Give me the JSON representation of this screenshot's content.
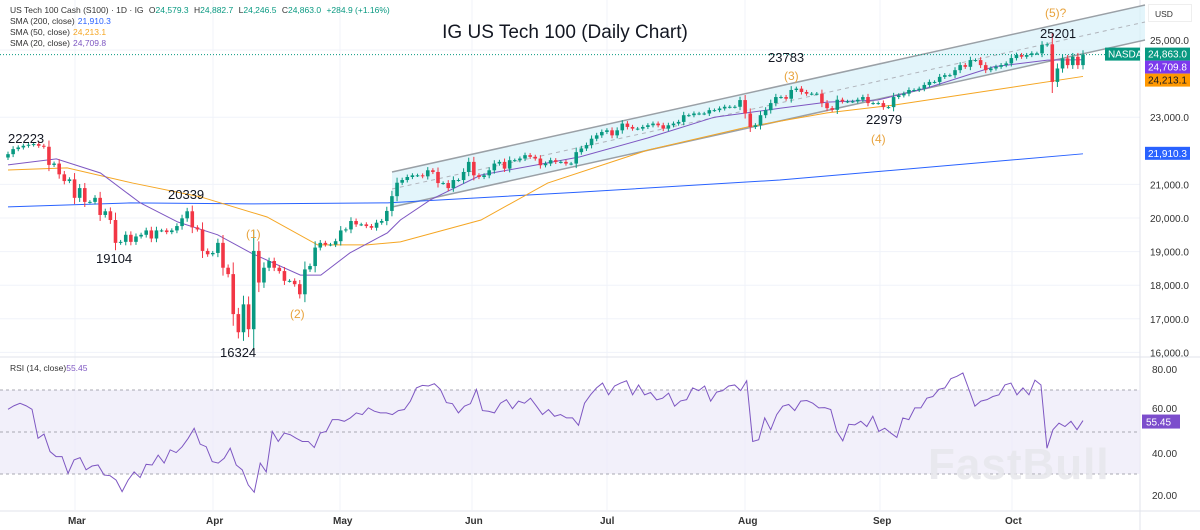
{
  "header": {
    "symbol": "US Tech 100 Cash (S100) · 1D · IG",
    "o_label": "O",
    "o": "24,579.3",
    "h_label": "H",
    "h": "24,882.7",
    "l_label": "L",
    "l": "24,246.5",
    "c_label": "C",
    "c": "24,863.0",
    "change": "+284.9 (+1.16%)",
    "sma200_label": "SMA (200, close)",
    "sma200": "21,910.3",
    "sma50_label": "SMA (50, close)",
    "sma50": "24,213.1",
    "sma20_label": "SMA (20, close)",
    "sma20": "24,709.8",
    "rsi_label": "RSI (14, close)",
    "rsi": "55.45",
    "currency": "USD",
    "watermark": "FastBull"
  },
  "colors": {
    "up": "#089981",
    "down": "#f23645",
    "sma200": "#2962ff",
    "sma50": "#f5a623",
    "sma20": "#7e57c2",
    "rsi": "#7e57c2",
    "channel": "#d9f2fa",
    "annotation_wave": "#e8a33d"
  },
  "chart_data": [
    {
      "type": "candlestick",
      "title": "IG US Tech 100 (Daily Chart)",
      "x_ticks": [
        "Mar",
        "Apr",
        "May",
        "Jun",
        "Jul",
        "Aug",
        "Sep",
        "Oct"
      ],
      "y_ticks": [
        "25,000.0",
        "23,000.0",
        "21,000.0",
        "20,000.0",
        "19,000.0",
        "18,000.0",
        "17,000.0",
        "16,000.0"
      ],
      "ylim": [
        15950,
        25450
      ],
      "closes": [
        21900,
        22050,
        22100,
        22150,
        22180,
        22200,
        22150,
        22120,
        21580,
        21620,
        21300,
        21100,
        21150,
        20600,
        20890,
        20480,
        20480,
        20600,
        20090,
        20200,
        19940,
        19260,
        19290,
        19500,
        19290,
        19450,
        19500,
        19630,
        19390,
        19630,
        19630,
        19580,
        19630,
        19760,
        19990,
        20200,
        19720,
        19660,
        19020,
        18920,
        18960,
        19260,
        18520,
        18330,
        17140,
        16600,
        17430,
        16690,
        19020,
        18080,
        18520,
        18720,
        18520,
        18420,
        18130,
        18130,
        18030,
        17730,
        18470,
        18570,
        19120,
        19260,
        19210,
        19210,
        19310,
        19630,
        19660,
        19910,
        19810,
        19810,
        19760,
        19710,
        19860,
        19910,
        20210,
        20650,
        21050,
        21130,
        21220,
        21270,
        21270,
        21240,
        21420,
        21370,
        21040,
        21040,
        20890,
        21130,
        21130,
        21370,
        21670,
        21270,
        21220,
        21270,
        21420,
        21620,
        21670,
        21470,
        21720,
        21720,
        21770,
        21870,
        21820,
        21770,
        21570,
        21620,
        21720,
        21670,
        21670,
        21620,
        21620,
        21960,
        22070,
        22170,
        22360,
        22460,
        22560,
        22610,
        22460,
        22610,
        22810,
        22710,
        22660,
        22660,
        22710,
        22760,
        22810,
        22760,
        22660,
        22760,
        22810,
        22860,
        23060,
        23060,
        23110,
        23110,
        23110,
        23210,
        23210,
        23260,
        23310,
        23310,
        23310,
        23510,
        23110,
        22710,
        22760,
        23060,
        23210,
        23420,
        23600,
        23600,
        23550,
        23810,
        23850,
        23750,
        23700,
        23700,
        23700,
        23420,
        23270,
        23220,
        23520,
        23470,
        23470,
        23470,
        23520,
        23600,
        23420,
        23420,
        23420,
        23300,
        23300,
        23600,
        23650,
        23700,
        23810,
        23810,
        23850,
        23960,
        24050,
        24050,
        24200,
        24250,
        24250,
        24400,
        24550,
        24500,
        24700,
        24700,
        24550,
        24400,
        24450,
        24500,
        24550,
        24600,
        24760,
        24850,
        24800,
        24850,
        24900,
        24900,
        25150,
        25170,
        24050,
        24450,
        24750,
        24550,
        24800,
        24550,
        24863
      ],
      "sma20": [
        [
          0,
          21580
        ],
        [
          0.045,
          21760
        ],
        [
          0.086,
          21340
        ],
        [
          0.123,
          20450
        ],
        [
          0.158,
          19880
        ],
        [
          0.195,
          19500
        ],
        [
          0.226,
          18960
        ],
        [
          0.272,
          18300
        ],
        [
          0.291,
          18300
        ],
        [
          0.318,
          18960
        ],
        [
          0.353,
          19560
        ],
        [
          0.365,
          19940
        ],
        [
          0.393,
          20540
        ],
        [
          0.44,
          21280
        ],
        [
          0.502,
          21640
        ],
        [
          0.532,
          21820
        ],
        [
          0.595,
          22380
        ],
        [
          0.657,
          23000
        ],
        [
          0.719,
          23270
        ],
        [
          0.762,
          23450
        ],
        [
          0.809,
          23510
        ],
        [
          0.855,
          23870
        ],
        [
          0.917,
          24500
        ],
        [
          0.967,
          24700
        ],
        [
          1,
          24709.8
        ]
      ],
      "sma50": [
        [
          0,
          21430
        ],
        [
          0.055,
          21490
        ],
        [
          0.116,
          21040
        ],
        [
          0.179,
          20630
        ],
        [
          0.241,
          20030
        ],
        [
          0.288,
          19200
        ],
        [
          0.334,
          19200
        ],
        [
          0.365,
          19290
        ],
        [
          0.44,
          19940
        ],
        [
          0.502,
          21040
        ],
        [
          0.595,
          22020
        ],
        [
          0.688,
          22710
        ],
        [
          0.762,
          23130
        ],
        [
          0.824,
          23360
        ],
        [
          0.917,
          23810
        ],
        [
          1,
          24213.1
        ]
      ],
      "sma200": [
        [
          0,
          20330
        ],
        [
          0.114,
          20450
        ],
        [
          0.226,
          20420
        ],
        [
          0.353,
          20450
        ],
        [
          0.532,
          20770
        ],
        [
          0.718,
          21130
        ],
        [
          1,
          21910.3
        ]
      ],
      "annotations": [
        "22223",
        "20339",
        "19104",
        "16324",
        "(1)",
        "(2)",
        "23783",
        "(3)",
        "22979",
        "(4)",
        "25201",
        "(5)?"
      ],
      "price_labels": {
        "nasdaq": "NASDAQ",
        "last": "24,863.0",
        "sma20": "24,709.8",
        "sma50": "24,213.1",
        "sma200": "21,910.3"
      }
    },
    {
      "type": "line",
      "name": "RSI (14, close)",
      "ylim": [
        10,
        87
      ],
      "y_ticks": [
        "80.00",
        "60.00",
        "40.00",
        "20.00"
      ],
      "bands": [
        70,
        50,
        30
      ],
      "last": "55.45",
      "values": [
        60.8,
        62.5,
        63.7,
        62.5,
        60.8,
        47,
        49,
        40.7,
        38.3,
        38.3,
        30.3,
        36.7,
        37.8,
        32,
        33.8,
        34.3,
        29.5,
        29.2,
        27.1,
        21.6,
        27.1,
        31,
        28.3,
        34.6,
        34.3,
        39,
        35.2,
        41.5,
        40.2,
        43,
        47,
        51.8,
        44.2,
        43,
        35.9,
        35.2,
        37.5,
        42.3,
        34.3,
        32,
        24.8,
        21.3,
        35.2,
        31,
        50.3,
        45.5,
        49.5,
        48.7,
        47,
        45.5,
        45.5,
        42.6,
        49.5,
        50.3,
        55.9,
        55.9,
        55.1,
        56.7,
        59.1,
        58.3,
        61.5,
        59.9,
        59.1,
        59.1,
        58.3,
        60.2,
        60.7,
        64.7,
        71,
        72.2,
        71.9,
        73,
        70.3,
        64,
        63.5,
        59.1,
        62.3,
        63.5,
        70.3,
        60.2,
        59.9,
        59.1,
        63.7,
        65.4,
        61.1,
        64.7,
        63.7,
        66.1,
        62.3,
        58.3,
        60.7,
        57.5,
        58.3,
        56.7,
        56.7,
        53.2,
        63.7,
        67.7,
        71,
        73.3,
        67.7,
        71.9,
        73.3,
        74.4,
        67.7,
        72.4,
        67.7,
        68.8,
        65.3,
        66.1,
        68.5,
        62.3,
        64.8,
        65.4,
        71,
        69.7,
        71.9,
        64.7,
        69,
        69.7,
        71.9,
        72.4,
        69.7,
        74.4,
        45.5,
        46.3,
        56.7,
        51.1,
        58.3,
        62.3,
        63.1,
        60.2,
        64.7,
        65,
        63.7,
        61.5,
        61.6,
        60.7,
        50.3,
        45.8,
        53.7,
        53.4,
        55.1,
        52.6,
        57.5,
        50.3,
        51.8,
        49.5,
        47.4,
        56.7,
        55.9,
        61.5,
        61.5,
        66.1,
        66.9,
        70.3,
        71,
        75.4,
        76.5,
        78.1,
        70.3,
        62.3,
        64.7,
        65.4,
        66.9,
        67.7,
        72.4,
        73.3,
        67.7,
        71,
        67.7,
        74.7,
        72.4,
        42.3,
        51.1,
        54.2,
        52.6,
        55.1,
        51.1,
        55.45
      ]
    }
  ]
}
